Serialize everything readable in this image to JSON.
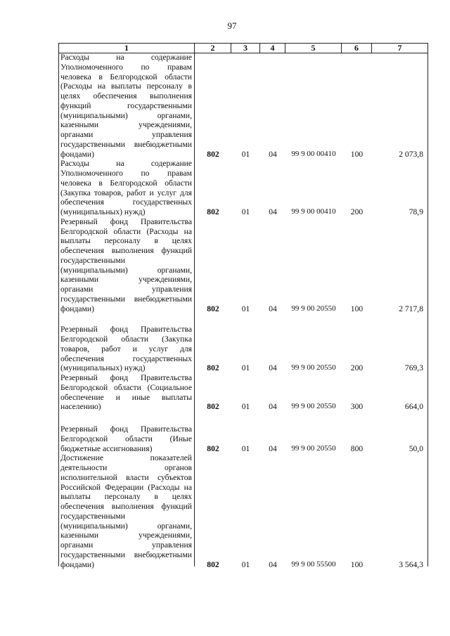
{
  "page_number": "97",
  "header": [
    "1",
    "2",
    "3",
    "4",
    "5",
    "6",
    "7"
  ],
  "rows": [
    {
      "lines": [
        "Расходы на содержание",
        "Уполномоченного по правам",
        "человека в Белгородской области",
        "(Расходы на выплаты персоналу в",
        "целях обеспечения выполнения",
        "функций государственными",
        "(муниципальными) органами,",
        "казенными учреждениями,",
        "органами управления",
        "государственными внебюджетными",
        "фондами)"
      ],
      "c2": "802",
      "c3": "01",
      "c4": "04",
      "c5": "99 9 00 00410",
      "c6": "100",
      "c7": "2 073,8"
    },
    {
      "lines": [
        "Расходы на содержание",
        "Уполномоченного по правам",
        "человека в Белгородской области",
        "(Закупка товаров, работ и услуг для",
        "обеспечения государственных",
        "(муниципальных) нужд)"
      ],
      "c2": "802",
      "c3": "01",
      "c4": "04",
      "c5": "99 9 00 00410",
      "c6": "200",
      "c7": "78,9"
    },
    {
      "lines": [
        "Резервный фонд Правительства",
        "Белгородской области (Расходы на",
        "выплаты персоналу в целях",
        "обеспечения выполнения функций",
        "государственными",
        "(муниципальными) органами,",
        "казенными учреждениями,",
        "органами управления",
        "государственными внебюджетными",
        "фондами)"
      ],
      "c2": "802",
      "c3": "01",
      "c4": "04",
      "c5": "99 9 00 20550",
      "c6": "100",
      "c7": "2 717,8"
    },
    {
      "lines": [
        "Резервный фонд Правительства",
        "Белгородской области (Закупка",
        "товаров, работ и услуг для",
        "обеспечения государственных",
        "(муниципальных) нужд)"
      ],
      "c2": "802",
      "c3": "01",
      "c4": "04",
      "c5": "99 9 00 20550",
      "c6": "200",
      "c7": "769,3"
    },
    {
      "lines": [
        "Резервный фонд Правительства",
        "Белгородской области (Социальное",
        "обеспечение и иные выплаты",
        "населению)"
      ],
      "c2": "802",
      "c3": "01",
      "c4": "04",
      "c5": "99 9 00 20550",
      "c6": "300",
      "c7": "664,0"
    },
    {
      "lines": [
        "Резервный фонд Правительства",
        "Белгородской области (Иные",
        "бюджетные ассигнования)"
      ],
      "c2": "802",
      "c3": "01",
      "c4": "04",
      "c5": "99 9 00 20550",
      "c6": "800",
      "c7": "50,0"
    },
    {
      "lines": [
        "Достижение показателей",
        "деятельности органов",
        "исполнительной власти субъектов",
        "Российской Федерации (Расходы на",
        "выплаты персоналу в целях",
        "обеспечения выполнения функций",
        "государственными",
        "(муниципальными) органами,",
        "казенными учреждениями,",
        "органами управления",
        "государственными внебюджетными",
        "фондами)"
      ],
      "c2": "802",
      "c3": "01",
      "c4": "04",
      "c5": "99 9 00 55500",
      "c6": "100",
      "c7": "3 564,3"
    }
  ]
}
